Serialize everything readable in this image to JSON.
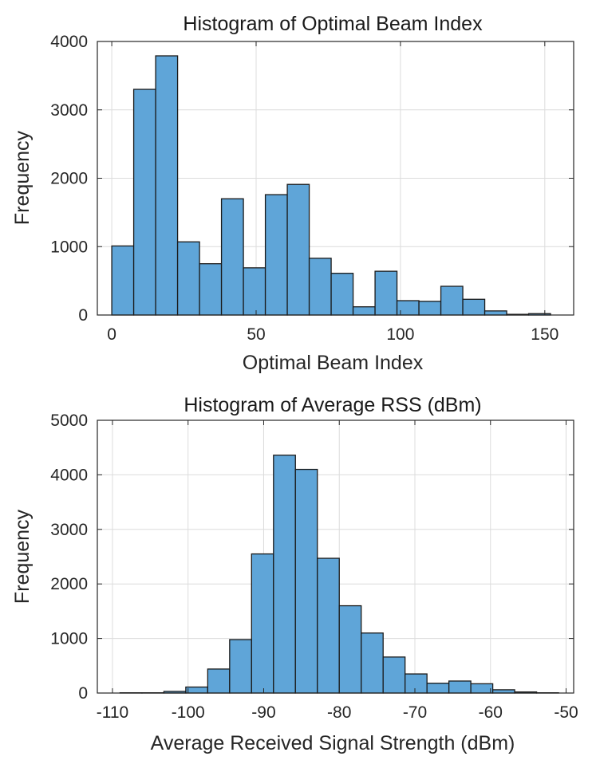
{
  "chart_data": [
    {
      "type": "bar",
      "title": "Histogram of Optimal Beam Index",
      "xlabel": "Optimal Beam Index",
      "ylabel": "Frequency",
      "xlim": [
        -5,
        160
      ],
      "ylim": [
        0,
        4000
      ],
      "xticks": [
        0,
        50,
        100,
        150
      ],
      "xtick_labels": [
        "0",
        "50",
        "100",
        "150"
      ],
      "yticks": [
        0,
        1000,
        2000,
        3000,
        4000
      ],
      "ytick_labels": [
        "0",
        "1000",
        "2000",
        "3000",
        "4000"
      ],
      "grid": true,
      "bin_edges": [
        0,
        7.6,
        15.2,
        22.8,
        30.4,
        38,
        45.6,
        53.2,
        60.8,
        68.4,
        76,
        83.6,
        91.2,
        98.8,
        106.4,
        114,
        121.6,
        129.2,
        136.8,
        144.4,
        152
      ],
      "values": [
        1010,
        3300,
        3790,
        1070,
        750,
        1700,
        690,
        1760,
        1910,
        830,
        610,
        120,
        640,
        210,
        200,
        420,
        230,
        60,
        10,
        20
      ],
      "color": "#5fa5d8"
    },
    {
      "type": "bar",
      "title": "Histogram of Average RSS (dBm)",
      "xlabel": "Average Received Signal Strength (dBm)",
      "ylabel": "Frequency",
      "xlim": [
        -112,
        -49
      ],
      "ylim": [
        0,
        5000
      ],
      "xticks": [
        -110,
        -100,
        -90,
        -80,
        -70,
        -60,
        -50
      ],
      "xtick_labels": [
        "-110",
        "-100",
        "-90",
        "-80",
        "-70",
        "-60",
        "-50"
      ],
      "yticks": [
        0,
        1000,
        2000,
        3000,
        4000,
        5000
      ],
      "ytick_labels": [
        "0",
        "1000",
        "2000",
        "3000",
        "4000",
        "5000"
      ],
      "grid": true,
      "bin_edges": [
        -109.0,
        -106.1,
        -103.2,
        -100.3,
        -97.4,
        -94.5,
        -91.6,
        -88.7,
        -85.8,
        -82.9,
        -80.0,
        -77.1,
        -74.2,
        -71.3,
        -68.4,
        -65.5,
        -62.6,
        -59.7,
        -56.8,
        -53.9,
        -51.0
      ],
      "values": [
        5,
        5,
        30,
        110,
        440,
        980,
        2550,
        4360,
        4100,
        2470,
        1600,
        1100,
        660,
        350,
        180,
        220,
        170,
        60,
        20,
        5
      ],
      "color": "#5fa5d8"
    }
  ]
}
